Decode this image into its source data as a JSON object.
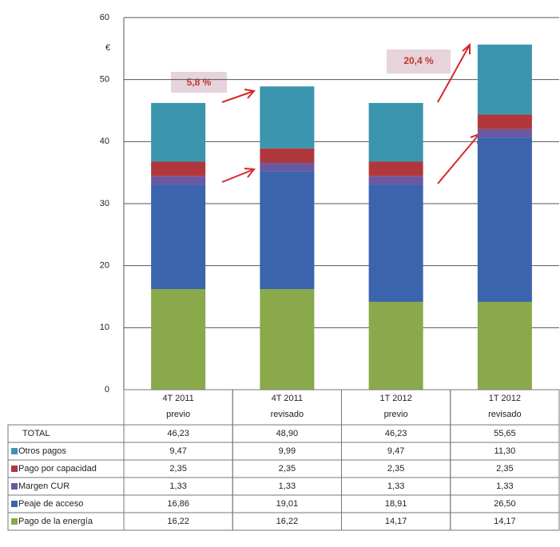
{
  "chart_data": {
    "type": "stacked-bar",
    "y_label": "€",
    "categories": [
      [
        "4T 2011",
        "previo"
      ],
      [
        "4T 2011",
        "revisado"
      ],
      [
        "1T 2012",
        "previo"
      ],
      [
        "1T 2012",
        "revisado"
      ]
    ],
    "series": [
      {
        "name": "Pago de la energía",
        "color": "#8aa94a",
        "values": [
          16.22,
          16.22,
          14.17,
          14.17
        ],
        "value_labels": [
          "16,22",
          "16,22",
          "14,17",
          "14,17"
        ]
      },
      {
        "name": "Peaje de acceso",
        "color": "#3b64ad",
        "values": [
          16.86,
          19.01,
          18.91,
          26.5
        ],
        "value_labels": [
          "16,86",
          "19,01",
          "18,91",
          "26,50"
        ]
      },
      {
        "name": "Margen CUR",
        "color": "#6a58a3",
        "values": [
          1.33,
          1.33,
          1.33,
          1.33
        ],
        "value_labels": [
          "1,33",
          "1,33",
          "1,33",
          "1,33"
        ]
      },
      {
        "name": "Pago por capacidad",
        "color": "#b0383d",
        "values": [
          2.35,
          2.35,
          2.35,
          2.35
        ],
        "value_labels": [
          "2,35",
          "2,35",
          "2,35",
          "2,35"
        ]
      },
      {
        "name": "Otros pagos",
        "color": "#3b95ae",
        "values": [
          9.47,
          9.99,
          9.47,
          11.3
        ],
        "value_labels": [
          "9,47",
          "9,99",
          "9,47",
          "11,30"
        ]
      }
    ],
    "totals": {
      "name": "TOTAL",
      "labels": [
        "46,23",
        "48,90",
        "46,23",
        "55,65"
      ]
    },
    "annotations": [
      "5,8 %",
      "20,4 %"
    ],
    "ylim": [
      0,
      60
    ],
    "yticks": [
      0,
      10,
      20,
      30,
      40,
      50,
      60
    ],
    "grid": true
  }
}
